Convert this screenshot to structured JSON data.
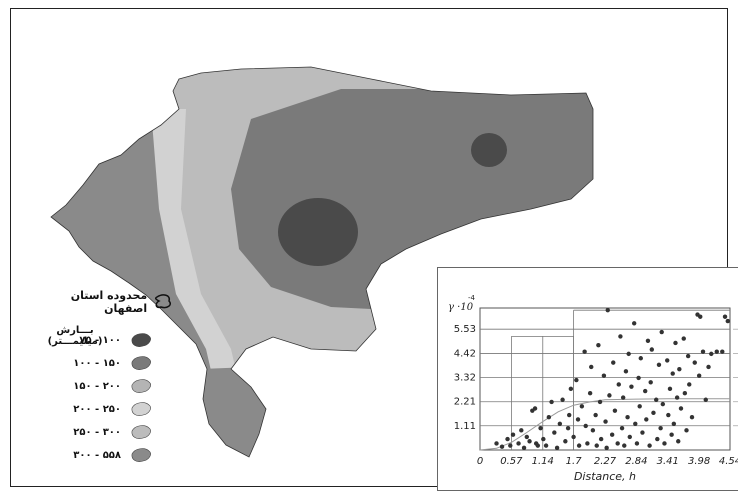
{
  "legend": {
    "boundary_label": "محدوده استان اصفهان",
    "title": "بـــارش (میلیمـــتر)",
    "classes": [
      {
        "label": "۷۵ - ۱۰۰",
        "color": "#4a4a4a"
      },
      {
        "label": "۱۰۰ - ۱۵۰",
        "color": "#7a7a7a"
      },
      {
        "label": "۱۵۰ - ۲۰۰",
        "color": "#b4b4b4"
      },
      {
        "label": "۲۰۰ - ۲۵۰",
        "color": "#d2d2d2"
      },
      {
        "label": "۲۵۰ - ۳۰۰",
        "color": "#bcbcbc"
      },
      {
        "label": "۳۰۰ - ۵۵۸",
        "color": "#8a8a8a"
      }
    ]
  },
  "chart_data": {
    "type": "scatter",
    "xlabel": "Distance, h",
    "ylabel": "γ ·10",
    "ylabel_exponent": "-4",
    "x_ticks": [
      "0",
      "0.57",
      "1.14",
      "1.7",
      "2.27",
      "2.84",
      "3.41",
      "3.98",
      "4.54"
    ],
    "y_ticks": [
      "1.11",
      "2.21",
      "3.32",
      "4.42",
      "5.53"
    ],
    "xlim": [
      0,
      4.54
    ],
    "ylim": [
      0,
      6.5
    ],
    "points": [
      [
        0.3,
        0.3
      ],
      [
        0.4,
        0.15
      ],
      [
        0.5,
        0.5
      ],
      [
        0.55,
        0.2
      ],
      [
        0.6,
        0.7
      ],
      [
        0.7,
        0.3
      ],
      [
        0.75,
        0.9
      ],
      [
        0.8,
        0.1
      ],
      [
        0.85,
        0.6
      ],
      [
        0.9,
        0.4
      ],
      [
        0.95,
        1.8
      ],
      [
        1.0,
        1.9
      ],
      [
        1.02,
        0.3
      ],
      [
        1.05,
        0.2
      ],
      [
        1.1,
        1.0
      ],
      [
        1.15,
        0.5
      ],
      [
        1.2,
        0.2
      ],
      [
        1.25,
        1.5
      ],
      [
        1.3,
        2.2
      ],
      [
        1.35,
        0.8
      ],
      [
        1.4,
        0.1
      ],
      [
        1.45,
        1.2
      ],
      [
        1.5,
        2.3
      ],
      [
        1.55,
        0.4
      ],
      [
        1.6,
        1.0
      ],
      [
        1.62,
        1.6
      ],
      [
        1.65,
        2.8
      ],
      [
        1.7,
        0.6
      ],
      [
        1.75,
        3.2
      ],
      [
        1.78,
        1.4
      ],
      [
        1.8,
        0.2
      ],
      [
        1.85,
        2.0
      ],
      [
        1.9,
        4.5
      ],
      [
        1.92,
        1.1
      ],
      [
        1.95,
        0.3
      ],
      [
        2.0,
        2.6
      ],
      [
        2.02,
        3.8
      ],
      [
        2.05,
        0.9
      ],
      [
        2.1,
        1.6
      ],
      [
        2.12,
        0.2
      ],
      [
        2.15,
        4.8
      ],
      [
        2.18,
        2.2
      ],
      [
        2.2,
        0.5
      ],
      [
        2.25,
        3.4
      ],
      [
        2.28,
        1.3
      ],
      [
        2.3,
        0.1
      ],
      [
        2.32,
        6.4
      ],
      [
        2.35,
        2.5
      ],
      [
        2.4,
        0.7
      ],
      [
        2.42,
        4.0
      ],
      [
        2.45,
        1.8
      ],
      [
        2.5,
        0.3
      ],
      [
        2.52,
        3.0
      ],
      [
        2.55,
        5.2
      ],
      [
        2.58,
        1.0
      ],
      [
        2.6,
        2.4
      ],
      [
        2.62,
        0.2
      ],
      [
        2.65,
        3.6
      ],
      [
        2.68,
        1.5
      ],
      [
        2.7,
        4.4
      ],
      [
        2.72,
        0.6
      ],
      [
        2.75,
        2.9
      ],
      [
        2.8,
        5.8
      ],
      [
        2.82,
        1.2
      ],
      [
        2.85,
        0.3
      ],
      [
        2.88,
        3.3
      ],
      [
        2.9,
        2.0
      ],
      [
        2.92,
        4.2
      ],
      [
        2.95,
        0.8
      ],
      [
        3.0,
        2.7
      ],
      [
        3.02,
        1.4
      ],
      [
        3.05,
        5.0
      ],
      [
        3.08,
        0.2
      ],
      [
        3.1,
        3.1
      ],
      [
        3.12,
        4.6
      ],
      [
        3.15,
        1.7
      ],
      [
        3.2,
        2.3
      ],
      [
        3.22,
        0.5
      ],
      [
        3.25,
        3.9
      ],
      [
        3.28,
        1.0
      ],
      [
        3.3,
        5.4
      ],
      [
        3.32,
        2.1
      ],
      [
        3.35,
        0.3
      ],
      [
        3.4,
        4.1
      ],
      [
        3.42,
        1.6
      ],
      [
        3.45,
        2.8
      ],
      [
        3.48,
        0.7
      ],
      [
        3.5,
        3.5
      ],
      [
        3.52,
        1.2
      ],
      [
        3.55,
        4.9
      ],
      [
        3.58,
        2.4
      ],
      [
        3.6,
        0.4
      ],
      [
        3.62,
        3.7
      ],
      [
        3.65,
        1.9
      ],
      [
        3.7,
        5.1
      ],
      [
        3.72,
        2.6
      ],
      [
        3.75,
        0.9
      ],
      [
        3.78,
        4.3
      ],
      [
        3.8,
        3.0
      ],
      [
        3.85,
        1.5
      ],
      [
        3.9,
        4.0
      ],
      [
        3.95,
        6.2
      ],
      [
        3.98,
        3.4
      ],
      [
        4.0,
        6.1
      ],
      [
        4.05,
        4.5
      ],
      [
        4.1,
        2.3
      ],
      [
        4.15,
        3.8
      ],
      [
        4.2,
        4.4
      ],
      [
        4.3,
        4.5
      ],
      [
        4.4,
        4.5
      ],
      [
        4.45,
        6.1
      ],
      [
        4.5,
        5.9
      ]
    ],
    "model_curve": [
      [
        0,
        0
      ],
      [
        0.3,
        0.08
      ],
      [
        0.57,
        0.35
      ],
      [
        0.85,
        0.8
      ],
      [
        1.14,
        1.3
      ],
      [
        1.42,
        1.75
      ],
      [
        1.7,
        2.05
      ],
      [
        2.0,
        2.2
      ],
      [
        2.27,
        2.3
      ],
      [
        2.84,
        2.33
      ],
      [
        3.41,
        2.35
      ],
      [
        3.98,
        2.35
      ],
      [
        4.54,
        2.35
      ]
    ]
  }
}
